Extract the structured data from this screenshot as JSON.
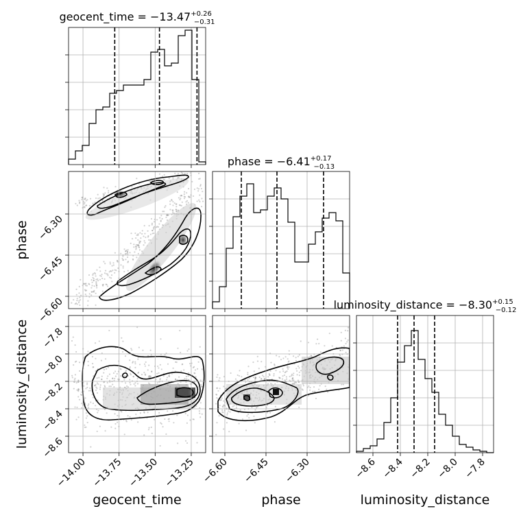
{
  "chart_data": {
    "type": "corner",
    "parameters": [
      "geocent_time",
      "phase",
      "luminosity_distance"
    ],
    "axis_labels": {
      "geocent_time": "geocent_time",
      "phase": "phase",
      "luminosity_distance": "luminosity_distance"
    },
    "ranges": {
      "geocent_time": [
        -14.1,
        -13.15
      ],
      "phase": [
        -6.645,
        -6.145
      ],
      "luminosity_distance": [
        -8.72,
        -7.72
      ]
    },
    "ticks": {
      "geocent_time": [
        -14.0,
        -13.75,
        -13.5,
        -13.25
      ],
      "phase": [
        -6.6,
        -6.45,
        -6.3
      ],
      "luminosity_distance": [
        -8.6,
        -8.4,
        -8.2,
        -8.0,
        -7.8
      ]
    },
    "tick_labels": {
      "geocent_time": [
        "−14.00",
        "−13.75",
        "−13.50",
        "−13.25"
      ],
      "phase": [
        "−6.60",
        "−6.45",
        "−6.30"
      ],
      "luminosity_distance": [
        "−8.6",
        "−8.4",
        "−8.2",
        "−8.0",
        "−7.8"
      ]
    },
    "titles": {
      "geocent_time": {
        "prefix": "geocent_time = −13.47",
        "sup": "+0.26",
        "sub": "−0.31"
      },
      "phase": {
        "prefix": "phase = −6.41",
        "sup": "+0.17",
        "sub": "−0.13"
      },
      "luminosity_distance": {
        "prefix": "luminosity_distance = −8.30",
        "sup": "+0.15",
        "sub": "−0.12"
      }
    },
    "quantiles": {
      "geocent_time": [
        -13.78,
        -13.47,
        -13.21
      ],
      "phase": [
        -6.54,
        -6.41,
        -6.24
      ],
      "luminosity_distance": [
        -8.42,
        -8.3,
        -8.15
      ]
    },
    "histograms": {
      "geocent_time": {
        "edges_range": [
          -14.1,
          -13.15
        ],
        "counts": [
          0.04,
          0.1,
          0.14,
          0.3,
          0.4,
          0.42,
          0.52,
          0.54,
          0.58,
          0.58,
          0.58,
          0.62,
          0.82,
          0.84,
          0.72,
          0.74,
          0.94,
          0.98,
          0.62,
          0.02
        ]
      },
      "phase": {
        "edges_range": [
          -6.645,
          -6.145
        ],
        "counts": [
          0.05,
          0.16,
          0.44,
          0.67,
          0.82,
          0.91,
          0.7,
          0.72,
          0.82,
          0.88,
          0.8,
          0.63,
          0.34,
          0.34,
          0.47,
          0.56,
          0.66,
          0.7,
          0.64,
          0.26
        ]
      },
      "luminosity_distance": {
        "edges_range": [
          -8.72,
          -7.72
        ],
        "counts": [
          0.01,
          0.03,
          0.05,
          0.1,
          0.22,
          0.4,
          0.66,
          0.78,
          0.89,
          0.68,
          0.54,
          0.44,
          0.28,
          0.2,
          0.12,
          0.06,
          0.04,
          0.02,
          0.01,
          0.0
        ]
      }
    },
    "grid": true,
    "style": "corner plot with 2D density contours, scatter points and 1D histograms"
  }
}
